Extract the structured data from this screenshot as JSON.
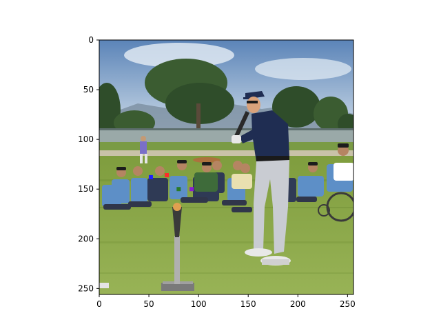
{
  "figure": {
    "axes": {
      "x_ticks": [
        "0",
        "50",
        "100",
        "150",
        "200",
        "250"
      ],
      "y_ticks": [
        "0",
        "50",
        "100",
        "150",
        "200",
        "250"
      ],
      "xlim": [
        0,
        256
      ],
      "ylim": [
        256,
        0
      ],
      "frame_color": "#000000"
    },
    "image": {
      "description_icon": "photo-icon",
      "palette": {
        "sky_top": "#5b84b8",
        "sky_bottom": "#c9d8e6",
        "tree": "#2f4d2a",
        "grass": "#8faa4a",
        "grass_dark": "#6f8d35",
        "dirt": "#b8a37a",
        "uniform_top": "#1f2d52",
        "uniform_pants": "#c9ccd2",
        "crowd_blue": "#5d8fc7"
      },
      "markers": [
        {
          "x": 52,
          "y": 138,
          "color": "#1f1fff"
        },
        {
          "x": 68,
          "y": 136,
          "color": "#ff2a2a"
        },
        {
          "x": 80,
          "y": 150,
          "color": "#2a7a2a"
        },
        {
          "x": 93,
          "y": 150,
          "color": "#8a1bd1"
        }
      ]
    }
  }
}
